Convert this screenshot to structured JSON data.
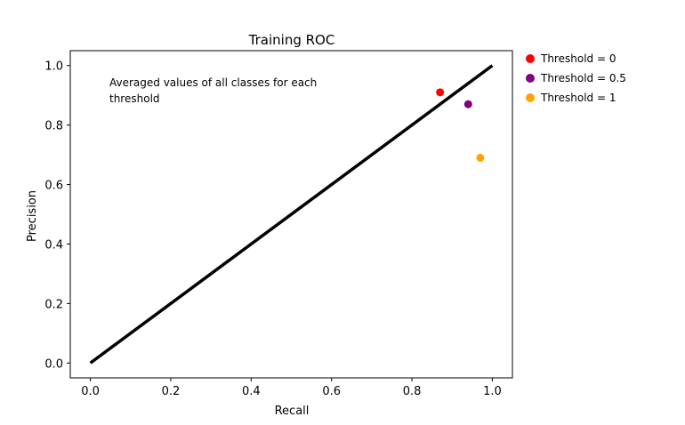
{
  "chart_data": {
    "type": "scatter",
    "title": "Training ROC",
    "xlabel": "Recall",
    "ylabel": "Precision",
    "xlim": [
      -0.05,
      1.05
    ],
    "ylim": [
      -0.05,
      1.05
    ],
    "xticks": [
      0.0,
      0.2,
      0.4,
      0.6,
      0.8,
      1.0
    ],
    "yticks": [
      0.0,
      0.2,
      0.4,
      0.6,
      0.8,
      1.0
    ],
    "tick_labels": [
      "0.0",
      "0.2",
      "0.4",
      "0.6",
      "0.8",
      "1.0"
    ],
    "grid": false,
    "legend_position": "outside-top-right",
    "reference_line": {
      "x": [
        0,
        1
      ],
      "y": [
        0,
        1
      ],
      "color": "#000000"
    },
    "annotation": [
      "Averaged values of all classes for each",
      "threshold"
    ],
    "series": [
      {
        "name": "Threshold = 0",
        "color": "#ff0000",
        "x": [
          0.87
        ],
        "y": [
          0.91
        ]
      },
      {
        "name": "Threshold = 0.5",
        "color": "#800080",
        "x": [
          0.94
        ],
        "y": [
          0.87
        ]
      },
      {
        "name": "Threshold = 1",
        "color": "#ffa500",
        "x": [
          0.97
        ],
        "y": [
          0.69
        ]
      }
    ]
  }
}
